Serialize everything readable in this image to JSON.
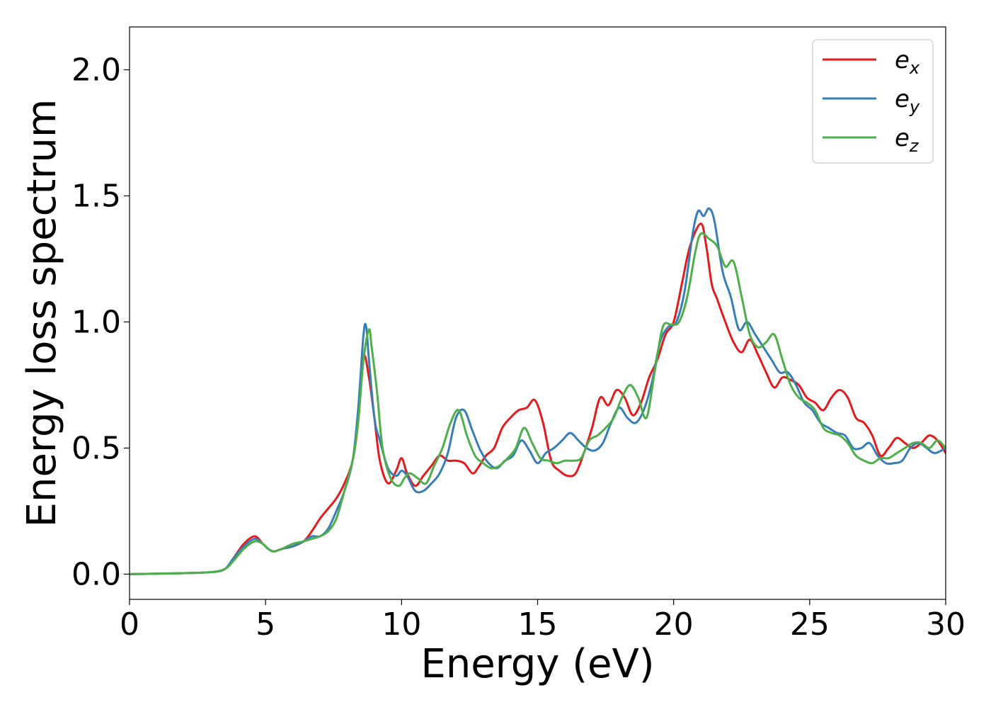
{
  "chart_data": {
    "type": "line",
    "xlabel": "Energy (eV)",
    "ylabel": "Energy loss spectrum",
    "xlim": [
      0,
      30
    ],
    "ylim": [
      -0.1,
      2.17
    ],
    "xticks": [
      "0",
      "5",
      "10",
      "15",
      "20",
      "25",
      "30"
    ],
    "yticks": [
      "0.0",
      "0.5",
      "1.0",
      "1.5",
      "2.0"
    ],
    "grid": false,
    "legend_position": "top-right",
    "series": [
      {
        "name": "e_x",
        "label_base": "e",
        "label_sub": "x",
        "color": "#e41a1c",
        "x": [
          0,
          1,
          2,
          3,
          3.5,
          3.8,
          4.2,
          4.6,
          4.9,
          5.1,
          5.3,
          5.6,
          6.0,
          6.4,
          6.7,
          7.0,
          7.3,
          7.6,
          7.9,
          8.2,
          8.4,
          8.6,
          8.8,
          9.0,
          9.2,
          9.5,
          9.8,
          10.0,
          10.2,
          10.5,
          10.8,
          11.1,
          11.4,
          11.7,
          12.0,
          12.3,
          12.6,
          12.8,
          13.1,
          13.4,
          13.7,
          14.0,
          14.3,
          14.6,
          14.9,
          15.2,
          15.5,
          15.8,
          16.1,
          16.4,
          16.7,
          17.0,
          17.3,
          17.6,
          17.9,
          18.2,
          18.5,
          18.8,
          19.1,
          19.4,
          19.7,
          20.0,
          20.3,
          20.6,
          21.0,
          21.2,
          21.4,
          21.6,
          21.9,
          22.2,
          22.5,
          22.8,
          23.1,
          23.4,
          23.7,
          24.0,
          24.3,
          24.6,
          24.9,
          25.2,
          25.5,
          25.8,
          26.1,
          26.4,
          26.7,
          27.0,
          27.3,
          27.6,
          27.9,
          28.2,
          28.5,
          28.8,
          29.1,
          29.4,
          29.7,
          30.0
        ],
        "y": [
          0,
          0.002,
          0.004,
          0.008,
          0.02,
          0.06,
          0.12,
          0.15,
          0.12,
          0.1,
          0.09,
          0.1,
          0.11,
          0.13,
          0.17,
          0.22,
          0.26,
          0.3,
          0.36,
          0.45,
          0.6,
          0.86,
          0.78,
          0.62,
          0.45,
          0.36,
          0.41,
          0.46,
          0.4,
          0.35,
          0.39,
          0.43,
          0.47,
          0.45,
          0.45,
          0.44,
          0.4,
          0.42,
          0.47,
          0.5,
          0.58,
          0.62,
          0.65,
          0.66,
          0.69,
          0.6,
          0.45,
          0.41,
          0.39,
          0.4,
          0.48,
          0.58,
          0.7,
          0.67,
          0.73,
          0.7,
          0.63,
          0.68,
          0.78,
          0.85,
          0.95,
          1.0,
          1.15,
          1.3,
          1.39,
          1.3,
          1.15,
          1.09,
          1.0,
          0.92,
          0.88,
          0.93,
          0.87,
          0.8,
          0.74,
          0.78,
          0.77,
          0.75,
          0.7,
          0.68,
          0.65,
          0.7,
          0.73,
          0.7,
          0.62,
          0.6,
          0.55,
          0.47,
          0.5,
          0.54,
          0.52,
          0.5,
          0.52,
          0.55,
          0.53,
          0.48
        ]
      },
      {
        "name": "e_y",
        "label_base": "e",
        "label_sub": "y",
        "color": "#377eb8",
        "x": [
          0,
          1,
          2,
          3,
          3.5,
          3.8,
          4.2,
          4.6,
          4.9,
          5.1,
          5.3,
          5.6,
          6.0,
          6.4,
          6.7,
          7.0,
          7.3,
          7.6,
          7.9,
          8.2,
          8.4,
          8.6,
          8.7,
          8.8,
          9.0,
          9.2,
          9.5,
          9.8,
          10.0,
          10.2,
          10.5,
          10.8,
          11.1,
          11.4,
          11.7,
          12.0,
          12.3,
          12.6,
          12.9,
          13.2,
          13.5,
          13.8,
          14.1,
          14.4,
          14.7,
          15.0,
          15.3,
          15.6,
          15.9,
          16.2,
          16.5,
          16.8,
          17.1,
          17.4,
          17.7,
          18.0,
          18.3,
          18.6,
          18.9,
          19.2,
          19.5,
          19.8,
          20.1,
          20.4,
          20.7,
          20.9,
          21.1,
          21.3,
          21.5,
          21.8,
          22.1,
          22.4,
          22.7,
          23.0,
          23.3,
          23.6,
          23.9,
          24.2,
          24.5,
          24.8,
          25.1,
          25.4,
          25.7,
          26.0,
          26.3,
          26.6,
          26.9,
          27.2,
          27.5,
          27.8,
          28.1,
          28.4,
          28.7,
          29.0,
          29.3,
          29.6,
          30.0
        ],
        "y": [
          0,
          0.002,
          0.004,
          0.008,
          0.02,
          0.06,
          0.11,
          0.14,
          0.12,
          0.1,
          0.09,
          0.1,
          0.11,
          0.13,
          0.15,
          0.15,
          0.18,
          0.25,
          0.33,
          0.45,
          0.65,
          0.95,
          0.98,
          0.85,
          0.62,
          0.53,
          0.42,
          0.39,
          0.41,
          0.39,
          0.33,
          0.33,
          0.36,
          0.4,
          0.48,
          0.62,
          0.65,
          0.57,
          0.49,
          0.44,
          0.42,
          0.45,
          0.47,
          0.53,
          0.49,
          0.44,
          0.48,
          0.5,
          0.53,
          0.56,
          0.53,
          0.5,
          0.49,
          0.52,
          0.6,
          0.66,
          0.62,
          0.6,
          0.65,
          0.76,
          0.92,
          0.98,
          1.0,
          1.12,
          1.35,
          1.44,
          1.42,
          1.45,
          1.4,
          1.2,
          1.1,
          0.97,
          1.0,
          0.95,
          0.9,
          0.85,
          0.8,
          0.8,
          0.75,
          0.68,
          0.65,
          0.6,
          0.58,
          0.56,
          0.55,
          0.5,
          0.5,
          0.52,
          0.47,
          0.44,
          0.44,
          0.45,
          0.5,
          0.52,
          0.5,
          0.48,
          0.5
        ]
      },
      {
        "name": "e_z",
        "label_base": "e",
        "label_sub": "z",
        "color": "#4daf4a",
        "x": [
          0,
          1,
          2,
          3,
          3.5,
          3.8,
          4.2,
          4.6,
          4.9,
          5.1,
          5.3,
          5.6,
          6.0,
          6.4,
          6.7,
          7.0,
          7.3,
          7.6,
          7.9,
          8.2,
          8.4,
          8.6,
          8.8,
          8.9,
          9.1,
          9.3,
          9.6,
          9.9,
          10.1,
          10.3,
          10.6,
          10.9,
          11.2,
          11.5,
          11.8,
          12.1,
          12.4,
          12.7,
          13.0,
          13.3,
          13.6,
          13.9,
          14.2,
          14.5,
          14.8,
          15.1,
          15.4,
          15.7,
          16.0,
          16.3,
          16.6,
          16.9,
          17.2,
          17.5,
          17.8,
          18.1,
          18.4,
          18.7,
          19.0,
          19.3,
          19.6,
          19.9,
          20.2,
          20.5,
          20.8,
          21.0,
          21.3,
          21.6,
          21.9,
          22.2,
          22.5,
          22.8,
          23.1,
          23.4,
          23.7,
          24.0,
          24.3,
          24.6,
          24.9,
          25.2,
          25.5,
          25.8,
          26.1,
          26.4,
          26.7,
          27.0,
          27.3,
          27.6,
          27.9,
          28.2,
          28.5,
          28.8,
          29.1,
          29.4,
          29.7,
          30.0
        ],
        "y": [
          0,
          0.002,
          0.004,
          0.008,
          0.02,
          0.05,
          0.1,
          0.13,
          0.12,
          0.1,
          0.09,
          0.1,
          0.12,
          0.13,
          0.14,
          0.15,
          0.17,
          0.22,
          0.33,
          0.45,
          0.6,
          0.85,
          0.97,
          0.9,
          0.72,
          0.5,
          0.38,
          0.35,
          0.38,
          0.4,
          0.38,
          0.36,
          0.43,
          0.5,
          0.6,
          0.65,
          0.55,
          0.47,
          0.44,
          0.42,
          0.43,
          0.46,
          0.5,
          0.58,
          0.52,
          0.46,
          0.45,
          0.44,
          0.45,
          0.45,
          0.46,
          0.53,
          0.55,
          0.58,
          0.62,
          0.7,
          0.75,
          0.7,
          0.62,
          0.8,
          0.98,
          0.99,
          1.0,
          1.1,
          1.28,
          1.35,
          1.33,
          1.3,
          1.22,
          1.24,
          1.1,
          0.95,
          0.9,
          0.92,
          0.95,
          0.85,
          0.75,
          0.7,
          0.68,
          0.65,
          0.58,
          0.56,
          0.55,
          0.52,
          0.47,
          0.45,
          0.44,
          0.46,
          0.46,
          0.48,
          0.5,
          0.52,
          0.52,
          0.5,
          0.53,
          0.5
        ]
      }
    ]
  }
}
